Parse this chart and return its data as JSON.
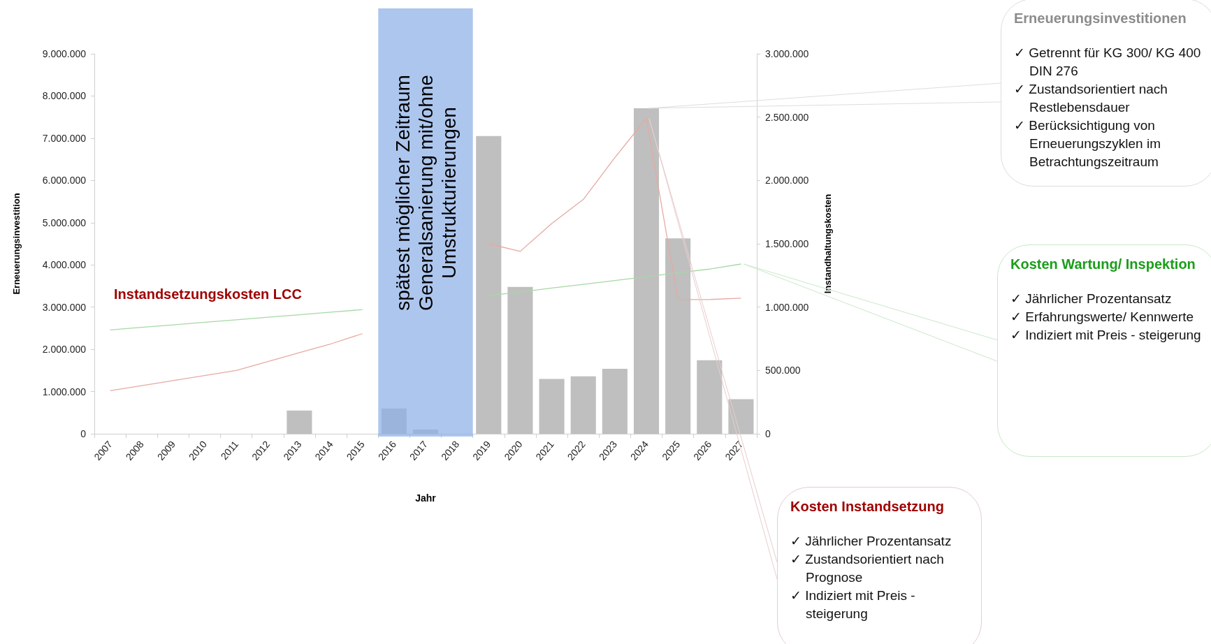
{
  "chart_data": {
    "type": "bar",
    "categories": [
      "2007",
      "2008",
      "2009",
      "2010",
      "2011",
      "2012",
      "2013",
      "2014",
      "2015",
      "2016",
      "2017",
      "2018",
      "2019",
      "2020",
      "2021",
      "2022",
      "2023",
      "2024",
      "2025",
      "2026",
      "2027"
    ],
    "series": [
      {
        "color": "#bfbfbf",
        "values": [
          0,
          0,
          0,
          0,
          0,
          0,
          550000,
          0,
          0,
          600000,
          100000,
          0,
          7050000,
          3480000,
          1300000,
          1360000,
          1540000,
          7710000,
          4630000,
          1740000,
          820000
        ]
      },
      {
        "type": "line",
        "axis": "y2",
        "color": "#a6d8a6",
        "values": [
          820000,
          840000,
          860000,
          880000,
          900000,
          920000,
          940000,
          960000,
          980000,
          null,
          null,
          null,
          1090000,
          1120000,
          1150000,
          1180000,
          1210000,
          1240000,
          1270000,
          1300000,
          1340000
        ]
      },
      {
        "type": "line",
        "axis": "y2",
        "color": "#e6aaa2",
        "values": [
          340000,
          380000,
          420000,
          460000,
          500000,
          570000,
          640000,
          710000,
          790000,
          null,
          null,
          null,
          1500000,
          1440000,
          1660000,
          1850000,
          2180000,
          2490000,
          1060000,
          1060000,
          1070000
        ]
      }
    ],
    "xlabel": "Jahr",
    "ylabel": "Erneuerungsinvestition",
    "y2label": "Instandhaltungskosten",
    "ylim": [
      0,
      9000000
    ],
    "yticks": [
      {
        "value": 0,
        "label": "0"
      },
      {
        "value": 1000000,
        "label": "1.000.000"
      },
      {
        "value": 2000000,
        "label": "2.000.000"
      },
      {
        "value": 3000000,
        "label": "3.000.000"
      },
      {
        "value": 4000000,
        "label": "4.000.000"
      },
      {
        "value": 5000000,
        "label": "5.000.000"
      },
      {
        "value": 6000000,
        "label": "6.000.000"
      },
      {
        "value": 7000000,
        "label": "7.000.000"
      },
      {
        "value": 8000000,
        "label": "8.000.000"
      },
      {
        "value": 9000000,
        "label": "9.000.000"
      }
    ],
    "y2lim": [
      0,
      3000000
    ],
    "y2ticks": [
      {
        "value": 0,
        "label": "0"
      },
      {
        "value": 500000,
        "label": "500.000"
      },
      {
        "value": 1000000,
        "label": "1.000.000"
      },
      {
        "value": 1500000,
        "label": "1.500.000"
      },
      {
        "value": 2000000,
        "label": "2.000.000"
      },
      {
        "value": 2500000,
        "label": "2.500.000"
      },
      {
        "value": 3000000,
        "label": "3.000.000"
      }
    ],
    "marker": "none",
    "bands": [
      {
        "axis": "x",
        "from": "2016",
        "to": "2018",
        "color": "#8eb0e8",
        "label": "spätest möglicher Zeitraum\nGeneralsanierung mit/ohne\nUmstrukturierungen"
      }
    ],
    "annotations": [
      "Instandsetzungskosten LCC",
      "Erneuerungsinvestitionen\n✓ Getrennt für KG 300/ KG 400 DIN 276\n✓ Zustandsorientiert nach Restlebensdauer\n✓ Berücksichtigung von Erneuerungszyklen im Betrachtungszeitraum",
      "Kosten Wartung/ Inspektion\n✓ Jährlicher Prozentansatz\n✓ Erfahrungswerte/ Kennwerte\n✓ Indiziert mit Preis - steigerung",
      "Kosten Instandsetzung\n✓ Jährlicher Prozentansatz\n✓ Zustandsorientiert nach Prognose\n✓ Indiziert mit Preis - steigerung"
    ]
  }
}
